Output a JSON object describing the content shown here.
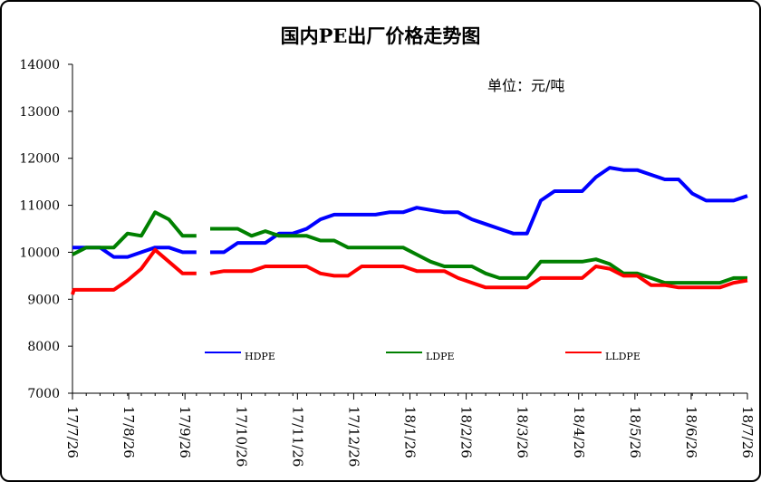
{
  "chart_data": {
    "type": "line",
    "title": "国内PE出厂价格走势图",
    "unit_note": "单位：元/吨",
    "ylim": [
      7000,
      14000
    ],
    "y_ticks": [
      "7000",
      "8000",
      "9000",
      "10000",
      "11000",
      "12000",
      "13000",
      "14000"
    ],
    "x_ticks": [
      "17/7/26",
      "17/8/26",
      "17/9/26",
      "17/10/26",
      "17/11/26",
      "17/12/26",
      "18/1/26",
      "18/2/26",
      "18/3/26",
      "18/4/26",
      "18/5/26",
      "18/6/26",
      "18/7/26"
    ],
    "legend_position": "bottom",
    "series": [
      {
        "name": "HDPE",
        "color": "#0000FF",
        "points": [
          [
            0,
            10100
          ],
          [
            1,
            10100
          ],
          [
            2,
            10100
          ],
          [
            3,
            9900
          ],
          [
            4,
            9900
          ],
          [
            5,
            10000
          ],
          [
            6,
            10100
          ],
          [
            7,
            10100
          ],
          [
            8,
            10000
          ],
          [
            9,
            10000
          ],
          [
            null,
            null
          ],
          [
            10,
            10000
          ],
          [
            11,
            10000
          ],
          [
            12,
            10200
          ],
          [
            13,
            10200
          ],
          [
            14,
            10200
          ],
          [
            15,
            10400
          ],
          [
            16,
            10400
          ],
          [
            17,
            10500
          ],
          [
            18,
            10700
          ],
          [
            19,
            10800
          ],
          [
            20,
            10800
          ],
          [
            21,
            10800
          ],
          [
            22,
            10800
          ],
          [
            23,
            10850
          ],
          [
            24,
            10850
          ],
          [
            25,
            10950
          ],
          [
            26,
            10900
          ],
          [
            27,
            10850
          ],
          [
            28,
            10850
          ],
          [
            29,
            10700
          ],
          [
            30,
            10600
          ],
          [
            31,
            10500
          ],
          [
            32,
            10400
          ],
          [
            33,
            10400
          ],
          [
            34,
            11100
          ],
          [
            35,
            11300
          ],
          [
            36,
            11300
          ],
          [
            37,
            11300
          ],
          [
            38,
            11600
          ],
          [
            39,
            11800
          ],
          [
            40,
            11750
          ],
          [
            41,
            11750
          ],
          [
            42,
            11650
          ],
          [
            43,
            11550
          ],
          [
            44,
            11550
          ],
          [
            45,
            11250
          ],
          [
            46,
            11100
          ],
          [
            47,
            11100
          ],
          [
            48,
            11100
          ],
          [
            49,
            11200
          ]
        ]
      },
      {
        "name": "LDPE",
        "color": "#008000",
        "points": [
          [
            0,
            9950
          ],
          [
            1,
            10100
          ],
          [
            2,
            10100
          ],
          [
            3,
            10100
          ],
          [
            4,
            10400
          ],
          [
            5,
            10350
          ],
          [
            6,
            10850
          ],
          [
            7,
            10700
          ],
          [
            8,
            10350
          ],
          [
            9,
            10350
          ],
          [
            null,
            null
          ],
          [
            10,
            10500
          ],
          [
            11,
            10500
          ],
          [
            12,
            10500
          ],
          [
            13,
            10350
          ],
          [
            14,
            10450
          ],
          [
            15,
            10350
          ],
          [
            16,
            10350
          ],
          [
            17,
            10350
          ],
          [
            18,
            10250
          ],
          [
            19,
            10250
          ],
          [
            20,
            10100
          ],
          [
            21,
            10100
          ],
          [
            22,
            10100
          ],
          [
            23,
            10100
          ],
          [
            24,
            10100
          ],
          [
            25,
            9950
          ],
          [
            26,
            9800
          ],
          [
            27,
            9700
          ],
          [
            28,
            9700
          ],
          [
            29,
            9700
          ],
          [
            30,
            9550
          ],
          [
            31,
            9450
          ],
          [
            32,
            9450
          ],
          [
            33,
            9450
          ],
          [
            34,
            9800
          ],
          [
            35,
            9800
          ],
          [
            36,
            9800
          ],
          [
            37,
            9800
          ],
          [
            38,
            9850
          ],
          [
            39,
            9750
          ],
          [
            40,
            9550
          ],
          [
            41,
            9550
          ],
          [
            42,
            9450
          ],
          [
            43,
            9350
          ],
          [
            44,
            9350
          ],
          [
            45,
            9350
          ],
          [
            46,
            9350
          ],
          [
            47,
            9350
          ],
          [
            48,
            9450
          ],
          [
            49,
            9450
          ]
        ]
      },
      {
        "name": "LLDPE",
        "color": "#FF0000",
        "points": [
          [
            0,
            9100
          ],
          [
            0.1,
            9200
          ],
          [
            1,
            9200
          ],
          [
            2,
            9200
          ],
          [
            3,
            9200
          ],
          [
            4,
            9400
          ],
          [
            5,
            9650
          ],
          [
            6,
            10050
          ],
          [
            7,
            9800
          ],
          [
            8,
            9550
          ],
          [
            9,
            9550
          ],
          [
            null,
            null
          ],
          [
            10,
            9550
          ],
          [
            11,
            9600
          ],
          [
            12,
            9600
          ],
          [
            13,
            9600
          ],
          [
            14,
            9700
          ],
          [
            15,
            9700
          ],
          [
            16,
            9700
          ],
          [
            17,
            9700
          ],
          [
            18,
            9550
          ],
          [
            19,
            9500
          ],
          [
            20,
            9500
          ],
          [
            21,
            9700
          ],
          [
            22,
            9700
          ],
          [
            23,
            9700
          ],
          [
            24,
            9700
          ],
          [
            25,
            9600
          ],
          [
            26,
            9600
          ],
          [
            27,
            9600
          ],
          [
            28,
            9450
          ],
          [
            29,
            9350
          ],
          [
            30,
            9250
          ],
          [
            31,
            9250
          ],
          [
            32,
            9250
          ],
          [
            33,
            9250
          ],
          [
            34,
            9450
          ],
          [
            35,
            9450
          ],
          [
            36,
            9450
          ],
          [
            37,
            9450
          ],
          [
            38,
            9700
          ],
          [
            39,
            9650
          ],
          [
            40,
            9500
          ],
          [
            41,
            9500
          ],
          [
            42,
            9300
          ],
          [
            43,
            9300
          ],
          [
            44,
            9250
          ],
          [
            45,
            9250
          ],
          [
            46,
            9250
          ],
          [
            47,
            9250
          ],
          [
            48,
            9350
          ],
          [
            49,
            9400
          ]
        ]
      }
    ]
  }
}
